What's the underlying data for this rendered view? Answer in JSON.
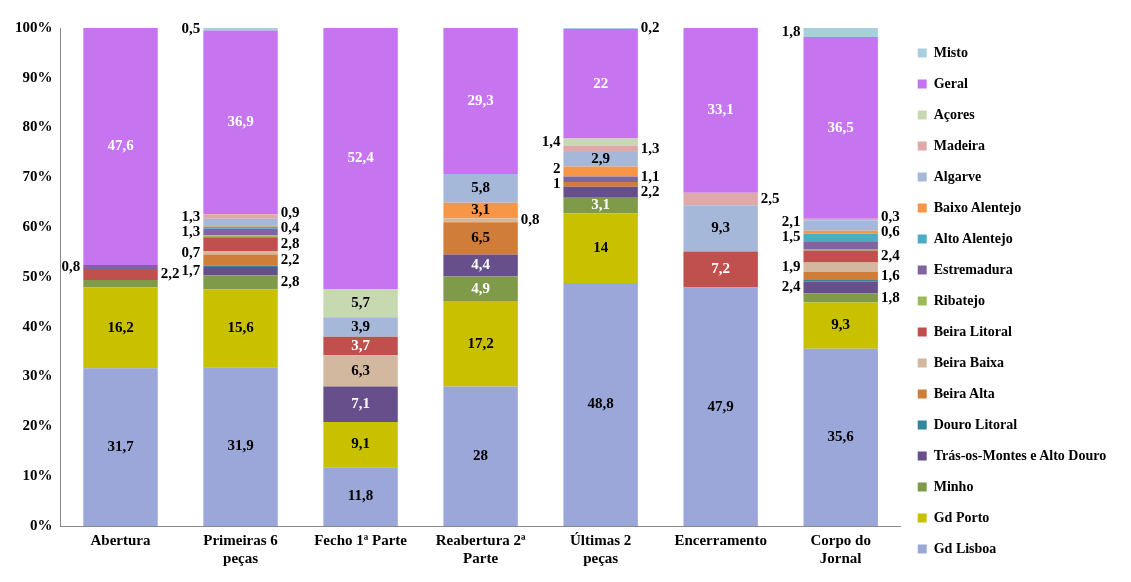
{
  "chart_data": {
    "type": "bar",
    "stacked": true,
    "categories": [
      "Abertura",
      "Primeiras 6 peças",
      "Fecho 1ª Parte",
      "Reabertura 2ª Parte",
      "Últimas 2 peças",
      "Encerramento",
      "Corpo do Jornal"
    ],
    "ylim": [
      0,
      100
    ],
    "yticks": [
      {
        "value": 0,
        "label": "0%"
      },
      {
        "value": 10,
        "label": "10%"
      },
      {
        "value": 20,
        "label": "20%"
      },
      {
        "value": 30,
        "label": "30%"
      },
      {
        "value": 40,
        "label": "40%"
      },
      {
        "value": 50,
        "label": "50%"
      },
      {
        "value": 60,
        "label": "60%"
      },
      {
        "value": 70,
        "label": "70%"
      },
      {
        "value": 80,
        "label": "80%"
      },
      {
        "value": 90,
        "label": "90%"
      },
      {
        "value": 100,
        "label": "100%"
      }
    ],
    "grid": false,
    "legend": "right",
    "series": [
      {
        "name": "Gd Lisboa",
        "color": "#9aa7d8",
        "values": [
          31.7,
          31.9,
          11.8,
          28,
          48.8,
          47.9,
          35.6
        ],
        "value_labels": [
          "31,7",
          "31,9",
          "11,8",
          "28",
          "48,8",
          "47,9",
          "35,6"
        ]
      },
      {
        "name": "Gd Porto",
        "color": "#c9c000",
        "values": [
          16.2,
          15.6,
          9.1,
          17.2,
          14,
          null,
          9.3
        ],
        "value_labels": [
          "16,2",
          "15,6",
          "9,1",
          "17,2",
          "14",
          null,
          "9,3"
        ]
      },
      {
        "name": "Minho",
        "color": "#7f9a48",
        "values": [
          1.5,
          2.8,
          null,
          4.9,
          3.1,
          null,
          1.8
        ],
        "value_labels": [
          null,
          "2,8",
          null,
          "4,9",
          "3,1",
          null,
          "1,8"
        ]
      },
      {
        "name": "Trás-os-Montes e Alto Douro",
        "color": "#664f8a",
        "values": [
          null,
          1.7,
          7.1,
          4.4,
          2.2,
          null,
          2.4
        ],
        "value_labels": [
          null,
          "1,7",
          "7,1",
          "4,4",
          "2,2",
          null,
          "2,4"
        ]
      },
      {
        "name": "Douro Litoral",
        "color": "#31859c",
        "values": [
          null,
          0.3,
          null,
          null,
          null,
          null,
          0.3
        ],
        "value_labels": [
          null,
          null,
          null,
          null,
          null,
          null,
          null
        ]
      },
      {
        "name": "Beira Alta",
        "color": "#d07d3a",
        "values": [
          null,
          2.2,
          null,
          6.5,
          1,
          null,
          1.6
        ],
        "value_labels": [
          null,
          "2,2",
          null,
          "6,5",
          "1",
          null,
          "1,6"
        ]
      },
      {
        "name": "Beira Baixa",
        "color": "#d3b8a0",
        "values": [
          null,
          0.7,
          6.3,
          0.8,
          null,
          null,
          1.9
        ],
        "value_labels": [
          null,
          "0,7",
          "6,3",
          "0,8",
          null,
          null,
          "1,9"
        ]
      },
      {
        "name": "Beira Litoral",
        "color": "#c0504d",
        "values": [
          2.2,
          2.8,
          3.7,
          null,
          null,
          7.2,
          2.4
        ],
        "value_labels": [
          "2,2",
          "2,8",
          "3,7",
          null,
          null,
          "7,2",
          "2,4"
        ]
      },
      {
        "name": "Ribatejo",
        "color": "#9bbb59",
        "values": [
          null,
          0.4,
          null,
          null,
          null,
          null,
          0.3
        ],
        "value_labels": [
          null,
          null,
          null,
          null,
          null,
          null,
          null
        ]
      },
      {
        "name": "Estremadura",
        "color": "#8064a2",
        "values": [
          0.8,
          1.3,
          null,
          null,
          1.1,
          null,
          1.6
        ],
        "value_labels": [
          "0,8",
          "1,3",
          null,
          null,
          "1,1",
          null,
          null
        ]
      },
      {
        "name": "Alto Alentejo",
        "color": "#4bacc6",
        "values": [
          null,
          0.4,
          null,
          null,
          null,
          null,
          1.5
        ],
        "value_labels": [
          null,
          "0,4",
          null,
          null,
          null,
          null,
          "1,5"
        ]
      },
      {
        "name": "Baixo Alentejo",
        "color": "#f79646",
        "values": [
          null,
          0.3,
          null,
          3.1,
          2,
          null,
          0.6
        ],
        "value_labels": [
          null,
          null,
          null,
          "3,1",
          "2",
          null,
          "0,6"
        ]
      },
      {
        "name": "Algarve",
        "color": "#a6b8da",
        "values": [
          null,
          1.3,
          3.9,
          5.8,
          2.9,
          9.3,
          2.1
        ],
        "value_labels": [
          null,
          "1,3",
          "3,9",
          "5,8",
          "2,9",
          "9,3",
          "2,1"
        ]
      },
      {
        "name": "Madeira",
        "color": "#e0a9a9",
        "values": [
          null,
          0.9,
          null,
          null,
          1.3,
          2.5,
          0.3
        ],
        "value_labels": [
          null,
          "0,9",
          null,
          null,
          "1,3",
          "2,5",
          "0,3"
        ]
      },
      {
        "name": "Açores",
        "color": "#c6d9b0",
        "values": [
          null,
          null,
          5.7,
          null,
          1.4,
          null,
          null
        ],
        "value_labels": [
          null,
          null,
          "5,7",
          null,
          "1,4",
          null,
          null
        ]
      },
      {
        "name": "Geral",
        "color": "#c774f0",
        "values": [
          47.6,
          36.9,
          52.4,
          29.3,
          22,
          33.1,
          36.5
        ],
        "value_labels": [
          "47,6",
          "36,9",
          "52,4",
          "29,3",
          "22",
          "33,1",
          "36,5"
        ]
      },
      {
        "name": "Misto",
        "color": "#a8d0dc",
        "values": [
          null,
          0.5,
          null,
          null,
          0.2,
          null,
          1.8
        ],
        "value_labels": [
          null,
          "0,5",
          null,
          null,
          "0,2",
          null,
          "1,8"
        ]
      }
    ]
  }
}
